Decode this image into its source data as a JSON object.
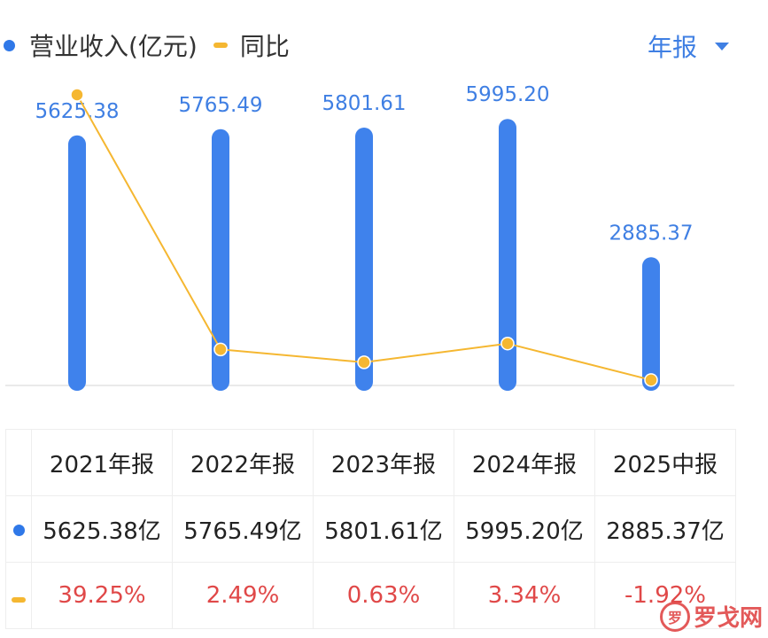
{
  "legend": {
    "series1_label": "营业收入(亿元)",
    "series2_label": "同比",
    "series1_color": "#2f78e8",
    "series2_color": "#f5b731"
  },
  "period_select": {
    "label": "年报",
    "icon": "caret-down-icon"
  },
  "chart_data": {
    "type": "bar",
    "categories": [
      "2021年报",
      "2022年报",
      "2023年报",
      "2024年报",
      "2025中报"
    ],
    "series": [
      {
        "name": "营业收入(亿元)",
        "type": "bar",
        "values": [
          5625.38,
          5765.49,
          5801.61,
          5995.2,
          2885.37
        ]
      },
      {
        "name": "同比",
        "type": "line",
        "values": [
          39.25,
          2.49,
          0.63,
          3.34,
          -1.92
        ]
      }
    ],
    "bar_labels": [
      "5625.38",
      "5765.49",
      "5801.61",
      "5995.20",
      "2885.37"
    ],
    "bar_color": "#3f82ec",
    "line_color": "#f5b731",
    "label_color": "#3f7fe3",
    "ylim_bar": [
      0,
      6000
    ],
    "ylim_line": [
      -10,
      45
    ],
    "grid": false
  },
  "table": {
    "headers": [
      "2021年报",
      "2022年报",
      "2023年报",
      "2024年报",
      "2025中报"
    ],
    "revenue_row": [
      "5625.38亿",
      "5765.49亿",
      "5801.61亿",
      "5995.20亿",
      "2885.37亿"
    ],
    "yoy_row": [
      "39.25%",
      "2.49%",
      "0.63%",
      "3.34%",
      "-1.92%"
    ]
  },
  "watermark": {
    "logo": "罗",
    "text": "罗戈网"
  }
}
